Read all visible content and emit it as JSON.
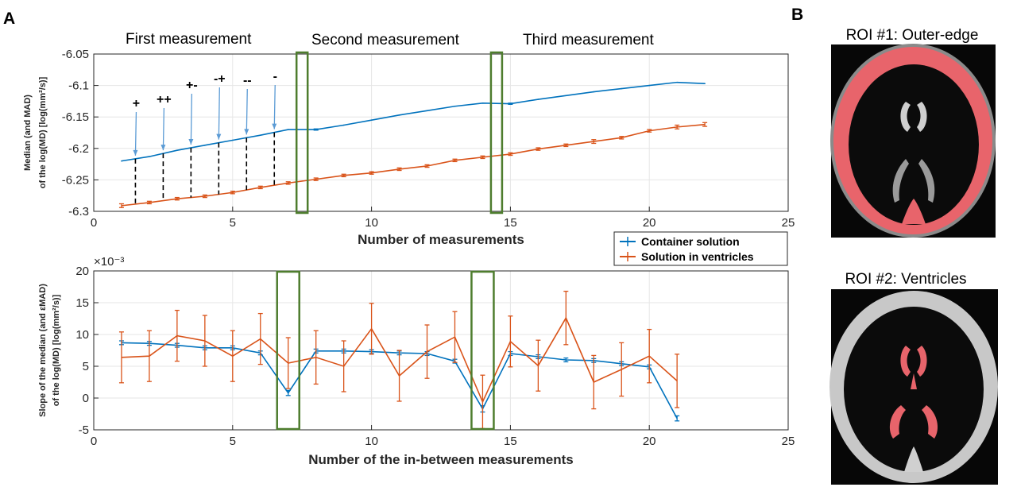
{
  "panel_labels": {
    "a": "A",
    "b": "B"
  },
  "phases": [
    "First measurement",
    "Second measurement",
    "Third measurement"
  ],
  "annotations": [
    "+",
    "++",
    "+-",
    "-+",
    "--",
    "-"
  ],
  "roi_titles": [
    "ROI #1: Outer-edge",
    "ROI #2: Ventricles"
  ],
  "legend": [
    "Container solution",
    "Solution in ventricles"
  ],
  "colors": {
    "series1": "#0072BD",
    "series2": "#D95319",
    "box": "#4E7D2E",
    "annotation_arrow": "#5B9BD5",
    "roi": "#E8646B"
  },
  "chart_data": [
    {
      "type": "line",
      "xlabel": "Number of measurements",
      "ylabel": [
        "Median (and MAD)",
        "of the log(MD) [log(mm²/s)]"
      ],
      "xlim": [
        0,
        25
      ],
      "ylim": [
        -6.3,
        -6.05
      ],
      "xticks": [
        0,
        5,
        10,
        15,
        20,
        25
      ],
      "yticks": [
        "-6.05",
        "-6.1",
        "-6.15",
        "-6.2",
        "-6.25",
        "-6.3"
      ],
      "grid": true,
      "annotation_x": [
        1.5,
        2.5,
        3.5,
        4.5,
        5.5,
        6.5
      ],
      "highlight_x": [
        7.5,
        14.5
      ],
      "series": [
        {
          "name": "Container solution",
          "x": [
            1,
            2,
            3,
            4,
            5,
            6,
            7,
            8,
            9,
            10,
            11,
            12,
            13,
            14,
            15,
            16,
            17,
            18,
            19,
            20,
            21,
            22
          ],
          "y": [
            -6.22,
            -6.213,
            -6.203,
            -6.195,
            -6.187,
            -6.179,
            -6.17,
            -6.17,
            -6.163,
            -6.155,
            -6.147,
            -6.14,
            -6.133,
            -6.128,
            -6.129,
            -6.122,
            -6.116,
            -6.11,
            -6.105,
            -6.1,
            -6.095,
            -6.097
          ],
          "err": [
            0,
            0,
            0,
            0,
            0,
            0,
            0,
            0.001,
            0,
            0,
            0,
            0,
            0,
            0,
            0.001,
            0,
            0,
            0,
            0,
            0,
            0,
            0
          ]
        },
        {
          "name": "Solution in ventricles",
          "x": [
            1,
            2,
            3,
            4,
            5,
            6,
            7,
            8,
            9,
            10,
            11,
            12,
            13,
            14,
            15,
            16,
            17,
            18,
            19,
            20,
            21,
            22
          ],
          "y": [
            -6.291,
            -6.286,
            -6.28,
            -6.276,
            -6.27,
            -6.262,
            -6.255,
            -6.249,
            -6.243,
            -6.239,
            -6.233,
            -6.228,
            -6.219,
            -6.214,
            -6.209,
            -6.201,
            -6.195,
            -6.189,
            -6.183,
            -6.172,
            -6.166,
            -6.162
          ],
          "err": [
            0.003,
            0.002,
            0.002,
            0.002,
            0.002,
            0.002,
            0.002,
            0.002,
            0.002,
            0.002,
            0.002,
            0.002,
            0.002,
            0.002,
            0.002,
            0.002,
            0.002,
            0.003,
            0.002,
            0.002,
            0.003,
            0.003
          ]
        }
      ]
    },
    {
      "type": "line",
      "xlabel": "Number of the in-between measurements",
      "ylabel": [
        "Slope of the median (and εMAD)",
        "of the log(MD) [log(mm²/s)]"
      ],
      "scale_label": "×10⁻³",
      "xlim": [
        0,
        25
      ],
      "ylim": [
        -5,
        20
      ],
      "xticks": [
        0,
        5,
        10,
        15,
        20,
        25
      ],
      "yticks": [
        "20",
        "15",
        "10",
        "5",
        "0",
        "-5"
      ],
      "grid": true,
      "highlight_x": [
        7,
        14
      ],
      "series": [
        {
          "name": "Container solution",
          "x": [
            1,
            2,
            3,
            4,
            5,
            6,
            7,
            8,
            9,
            10,
            11,
            12,
            13,
            14,
            15,
            16,
            17,
            18,
            19,
            20,
            21
          ],
          "y": [
            8.7,
            8.6,
            8.3,
            7.9,
            7.9,
            7.1,
            0.8,
            7.4,
            7.4,
            7.3,
            7.1,
            7.0,
            5.8,
            -1.7,
            7.0,
            6.5,
            6.0,
            5.9,
            5.4,
            4.9,
            -3.2
          ],
          "err": [
            0.3,
            0.3,
            0.3,
            0.3,
            0.3,
            0.3,
            0.4,
            0.3,
            0.3,
            0.3,
            0.3,
            0.3,
            0.3,
            0.5,
            0.3,
            0.3,
            0.3,
            0.3,
            0.3,
            0.3,
            0.4
          ]
        },
        {
          "name": "Solution in ventricles",
          "x": [
            1,
            2,
            3,
            4,
            5,
            6,
            7,
            8,
            9,
            10,
            11,
            12,
            13,
            14,
            15,
            16,
            17,
            18,
            19,
            20,
            21
          ],
          "y": [
            6.4,
            6.6,
            9.8,
            9.0,
            6.6,
            9.3,
            5.5,
            6.4,
            5.0,
            10.9,
            3.5,
            7.3,
            9.6,
            -0.6,
            8.9,
            5.1,
            12.6,
            2.5,
            4.5,
            6.6,
            2.7
          ],
          "err": [
            4.0,
            4.0,
            4.0,
            4.0,
            4.0,
            4.0,
            4.0,
            4.2,
            4.0,
            4.0,
            4.0,
            4.2,
            4.0,
            4.2,
            4.0,
            4.0,
            4.2,
            4.2,
            4.2,
            4.2,
            4.2
          ]
        }
      ]
    }
  ]
}
